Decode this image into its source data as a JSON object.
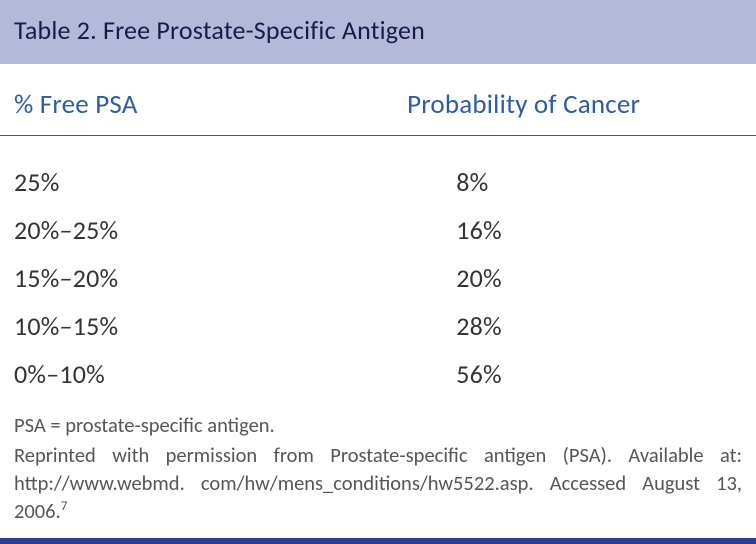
{
  "title": "Table 2.  Free Prostate-Specific Antigen",
  "columns": {
    "c1": "% Free PSA",
    "c2": "Probability of Cancer"
  },
  "rows": [
    {
      "psa": "25%",
      "prob": "8%"
    },
    {
      "psa": "20%–25%",
      "prob": "16%"
    },
    {
      "psa": "15%–20%",
      "prob": "20%"
    },
    {
      "psa": "10%–15%",
      "prob": "28%"
    },
    {
      "psa": "0%–10%",
      "prob": "56%"
    }
  ],
  "footnotes": {
    "abbrev": "PSA = prostate-specific antigen.",
    "credit": "Reprinted with permission from Prostate-specific antigen (PSA). Available at: http://www.webmd. com/hw/mens_conditions/hw5522.asp. Accessed August 13, 2006.",
    "ref": "7"
  },
  "styling": {
    "title_bg": "#b4b8d9",
    "title_color": "#1a1a4a",
    "header_color": "#2d5ca6",
    "header_rule_color": "#2d5ca6",
    "body_text_color": "#333333",
    "footnote_color": "#555555",
    "bottom_bar_color": "#2e3a8a",
    "title_fontsize": 26,
    "header_fontsize": 27,
    "row_fontsize": 26,
    "footnote_fontsize": 20.5,
    "font_family": "Gill Sans"
  }
}
